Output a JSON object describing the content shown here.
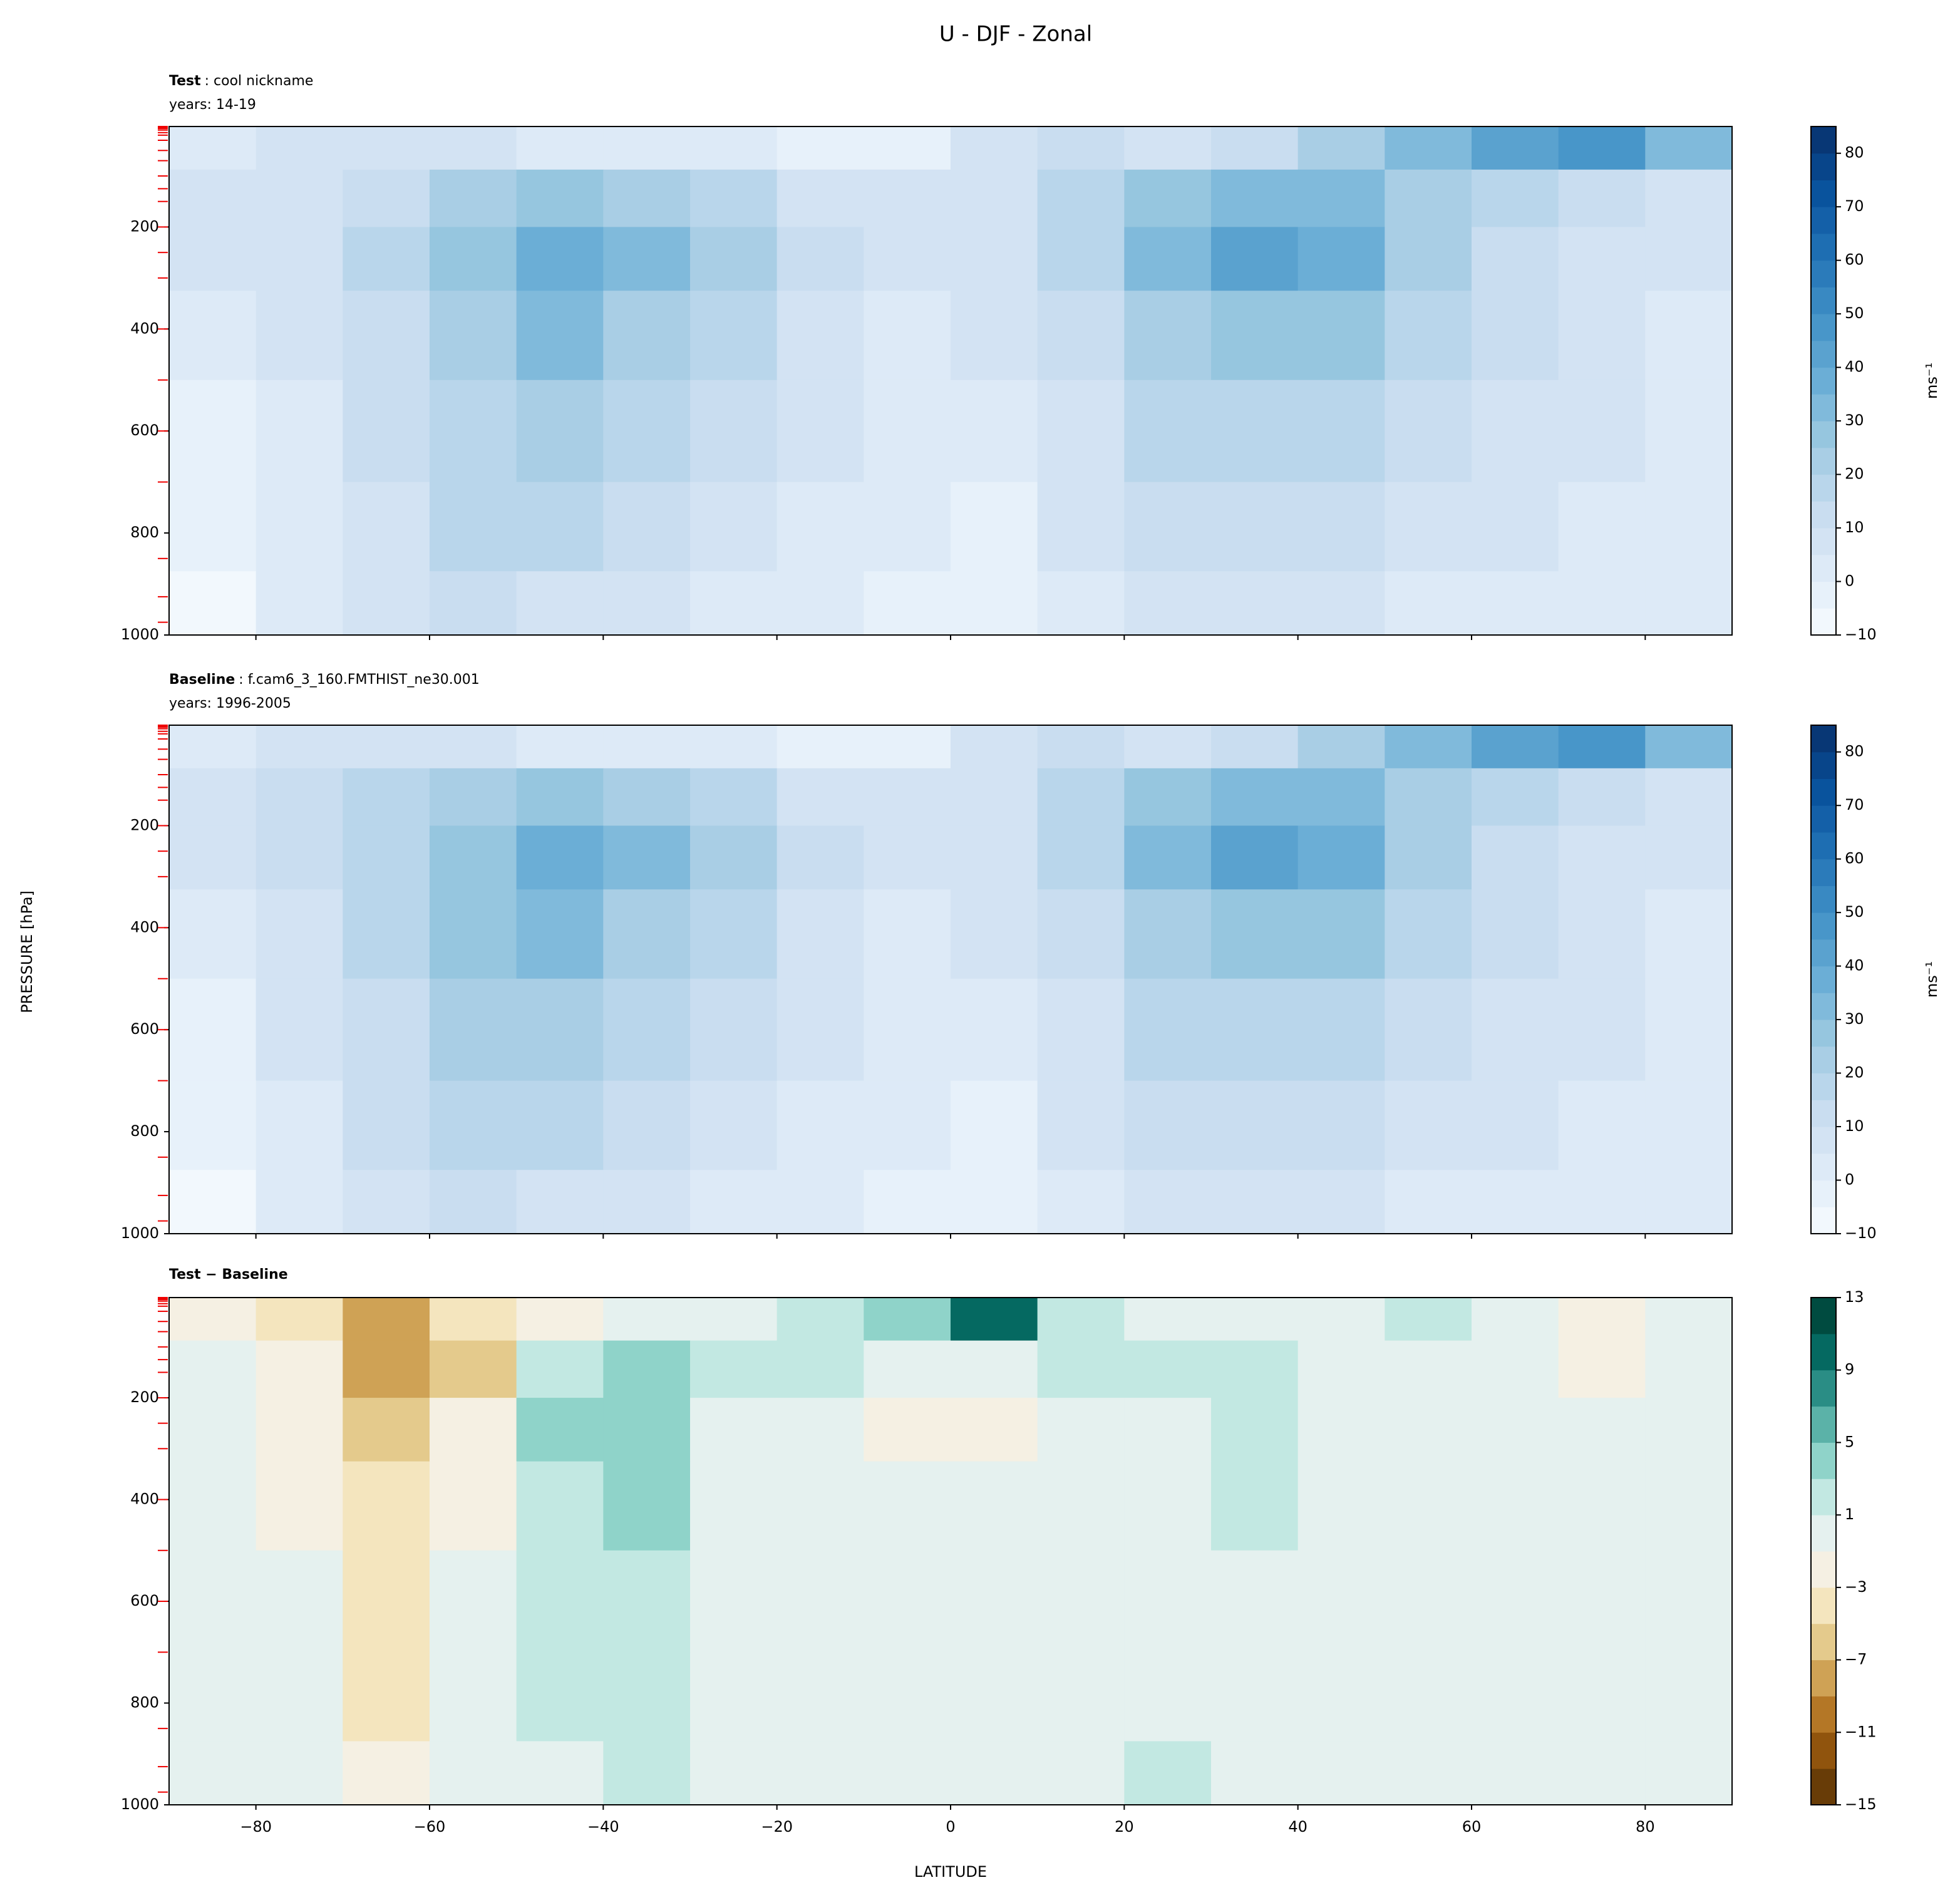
{
  "figure": {
    "title": "U - DJF - Zonal",
    "xlabel": "LATITUDE",
    "ylabel": "PRESSURE [hPa]"
  },
  "chart_data": [
    {
      "type": "contour",
      "title_bold": "Test",
      "title_rest": ": cool nickname",
      "subtitle": "years: 14-19",
      "x": [
        -85,
        -75,
        -65,
        -55,
        -45,
        -35,
        -25,
        -15,
        -5,
        5,
        15,
        25,
        35,
        45,
        55,
        65,
        75,
        85
      ],
      "y": [
        25,
        150,
        250,
        400,
        600,
        800,
        950
      ],
      "z": [
        [
          3,
          5,
          5,
          5,
          3,
          2,
          0,
          -2,
          -3,
          8,
          12,
          8,
          10,
          20,
          30,
          40,
          45,
          30
        ],
        [
          5,
          8,
          12,
          20,
          25,
          22,
          15,
          8,
          5,
          8,
          15,
          25,
          32,
          30,
          20,
          15,
          10,
          5
        ],
        [
          5,
          8,
          15,
          25,
          35,
          30,
          20,
          10,
          5,
          8,
          18,
          30,
          40,
          35,
          22,
          12,
          8,
          5
        ],
        [
          0,
          5,
          12,
          22,
          30,
          22,
          15,
          8,
          3,
          5,
          12,
          22,
          28,
          25,
          18,
          10,
          5,
          3
        ],
        [
          -2,
          3,
          10,
          18,
          22,
          15,
          10,
          5,
          2,
          3,
          8,
          15,
          18,
          15,
          12,
          8,
          5,
          3
        ],
        [
          -5,
          3,
          8,
          15,
          15,
          10,
          5,
          3,
          0,
          -1,
          5,
          10,
          12,
          10,
          8,
          5,
          3,
          3
        ],
        [
          -10,
          0,
          5,
          10,
          8,
          5,
          3,
          0,
          -2,
          -2,
          3,
          5,
          5,
          5,
          3,
          3,
          3,
          0
        ]
      ],
      "levels": [
        -10,
        -5,
        0,
        5,
        10,
        15,
        20,
        25,
        30,
        35,
        40,
        45,
        50,
        55,
        60,
        65,
        70,
        75,
        80,
        85
      ],
      "colors": [
        "#f7fbff",
        "#deebf7",
        "#c6dbef",
        "#9ecae1",
        "#6baed6",
        "#4292c6",
        "#2171b5",
        "#08519c",
        "#08306b"
      ],
      "cticks": [
        {
          "value": -10,
          "label": "−10"
        },
        0,
        10,
        20,
        30,
        40,
        50,
        60,
        70,
        80
      ],
      "colorbar_label": "ms⁻¹",
      "xlim": [
        -90,
        90
      ],
      "xticks": [
        -80,
        -60,
        -40,
        -20,
        0,
        20,
        40,
        60,
        80
      ],
      "show_xtick_labels": false,
      "ylim": [
        1000,
        3
      ],
      "yticks": [
        200,
        400,
        600,
        800,
        1000
      ],
      "model_levels": [
        3,
        5,
        7,
        10,
        15,
        20,
        30,
        50,
        70,
        100,
        125,
        150,
        200,
        250,
        300,
        400,
        500,
        600,
        700,
        850,
        925,
        975
      ]
    },
    {
      "type": "contour",
      "title_bold": "Baseline",
      "title_rest": ": f.cam6_3_160.FMTHIST_ne30.001",
      "subtitle": "years: 1996-2005",
      "x": [
        -85,
        -75,
        -65,
        -55,
        -45,
        -35,
        -25,
        -15,
        -5,
        5,
        15,
        25,
        35,
        45,
        55,
        65,
        75,
        85
      ],
      "y": [
        25,
        150,
        250,
        400,
        600,
        800,
        950
      ],
      "z": [
        [
          3,
          5,
          6,
          6,
          4,
          2,
          0,
          -2,
          -3,
          6,
          10,
          8,
          10,
          20,
          30,
          40,
          48,
          30
        ],
        [
          5,
          10,
          15,
          22,
          27,
          22,
          15,
          8,
          5,
          8,
          15,
          25,
          33,
          30,
          20,
          15,
          10,
          5
        ],
        [
          5,
          10,
          18,
          27,
          35,
          30,
          20,
          10,
          5,
          8,
          18,
          30,
          42,
          35,
          22,
          12,
          8,
          5
        ],
        [
          0,
          5,
          15,
          25,
          30,
          22,
          15,
          8,
          3,
          5,
          12,
          22,
          28,
          25,
          18,
          10,
          5,
          3
        ],
        [
          -2,
          5,
          12,
          20,
          22,
          15,
          10,
          5,
          2,
          3,
          8,
          15,
          18,
          15,
          12,
          8,
          5,
          3
        ],
        [
          -5,
          3,
          10,
          15,
          15,
          10,
          5,
          3,
          0,
          -1,
          5,
          10,
          12,
          10,
          8,
          5,
          3,
          3
        ],
        [
          -10,
          0,
          5,
          10,
          8,
          5,
          3,
          0,
          -2,
          -2,
          3,
          5,
          5,
          5,
          3,
          3,
          0,
          3
        ]
      ],
      "levels": [
        -10,
        -5,
        0,
        5,
        10,
        15,
        20,
        25,
        30,
        35,
        40,
        45,
        50,
        55,
        60,
        65,
        70,
        75,
        80,
        85
      ],
      "colors": [
        "#f7fbff",
        "#deebf7",
        "#c6dbef",
        "#9ecae1",
        "#6baed6",
        "#4292c6",
        "#2171b5",
        "#08519c",
        "#08306b"
      ],
      "cticks": [
        {
          "value": -10,
          "label": "−10"
        },
        0,
        10,
        20,
        30,
        40,
        50,
        60,
        70,
        80
      ],
      "colorbar_label": "ms⁻¹",
      "xlim": [
        -90,
        90
      ],
      "xticks": [
        -80,
        -60,
        -40,
        -20,
        0,
        20,
        40,
        60,
        80
      ],
      "show_xtick_labels": false,
      "ylim": [
        1000,
        3
      ],
      "yticks": [
        200,
        400,
        600,
        800,
        1000
      ],
      "model_levels": [
        3,
        5,
        7,
        10,
        15,
        20,
        30,
        50,
        70,
        100,
        125,
        150,
        200,
        250,
        300,
        400,
        500,
        600,
        700,
        850,
        925,
        975
      ]
    },
    {
      "type": "contour",
      "title_bold": "Test − Baseline",
      "x": [
        -85,
        -75,
        -65,
        -55,
        -45,
        -35,
        -25,
        -15,
        -5,
        5,
        15,
        25,
        35,
        45,
        55,
        65,
        75,
        85
      ],
      "y": [
        25,
        150,
        250,
        400,
        600,
        800,
        950
      ],
      "z": [
        [
          -2,
          -5,
          -9,
          -5,
          -2,
          0,
          0,
          1,
          3,
          9,
          2,
          0,
          -1,
          0,
          1,
          -1,
          -3,
          -1
        ],
        [
          -1,
          -3,
          -8,
          -6,
          2,
          3,
          2,
          2,
          0,
          0,
          1,
          2,
          2,
          0,
          0,
          -1,
          -2,
          -1
        ],
        [
          0,
          -2,
          -6,
          -3,
          3,
          4,
          0,
          0,
          -2,
          -2,
          0,
          0,
          2,
          0,
          0,
          -1,
          -1,
          -1
        ],
        [
          0,
          -2,
          -5,
          -2,
          2,
          4,
          0,
          0,
          0,
          0,
          0,
          0,
          2,
          0,
          0,
          -1,
          -1,
          -1
        ],
        [
          0,
          -1,
          -4,
          -1,
          1,
          2,
          0,
          0,
          0,
          0,
          0,
          0,
          0,
          0,
          0,
          -1,
          -1,
          0
        ],
        [
          0,
          -1,
          -4,
          -1,
          1,
          1,
          0,
          0,
          0,
          0,
          0,
          0,
          0,
          0,
          -1,
          -1,
          0,
          0
        ],
        [
          0,
          -1,
          -3,
          -1,
          0,
          1,
          0,
          0,
          0,
          0,
          0,
          1,
          0,
          0,
          -1,
          -1,
          0,
          0
        ]
      ],
      "levels": [
        -15,
        -13,
        -11,
        -9,
        -7,
        -5,
        -3,
        -1,
        1,
        3,
        5,
        7,
        9,
        11,
        13
      ],
      "colors": [
        "#543005",
        "#8c510a",
        "#bf812d",
        "#dfc27d",
        "#f6e8c3",
        "#f5f5f5",
        "#c7eae5",
        "#80cdc1",
        "#35978f",
        "#01665e",
        "#003c30"
      ],
      "cticks": [
        {
          "value": -15,
          "label": "−15"
        },
        {
          "value": -11,
          "label": "−11"
        },
        {
          "value": -7,
          "label": "−7"
        },
        {
          "value": -3,
          "label": "−3"
        },
        1,
        5,
        9,
        13
      ],
      "xlim": [
        -90,
        90
      ],
      "xticks": [
        {
          "value": -80,
          "label": "−80"
        },
        {
          "value": -60,
          "label": "−60"
        },
        {
          "value": -40,
          "label": "−40"
        },
        {
          "value": -20,
          "label": "−20"
        },
        0,
        20,
        40,
        60,
        80
      ],
      "show_xtick_labels": true,
      "ylim": [
        1000,
        3
      ],
      "yticks": [
        200,
        400,
        600,
        800,
        1000
      ],
      "model_levels": [
        3,
        5,
        7,
        10,
        15,
        20,
        30,
        50,
        70,
        100,
        125,
        150,
        200,
        250,
        300,
        400,
        500,
        600,
        700,
        850,
        925,
        975
      ]
    }
  ]
}
